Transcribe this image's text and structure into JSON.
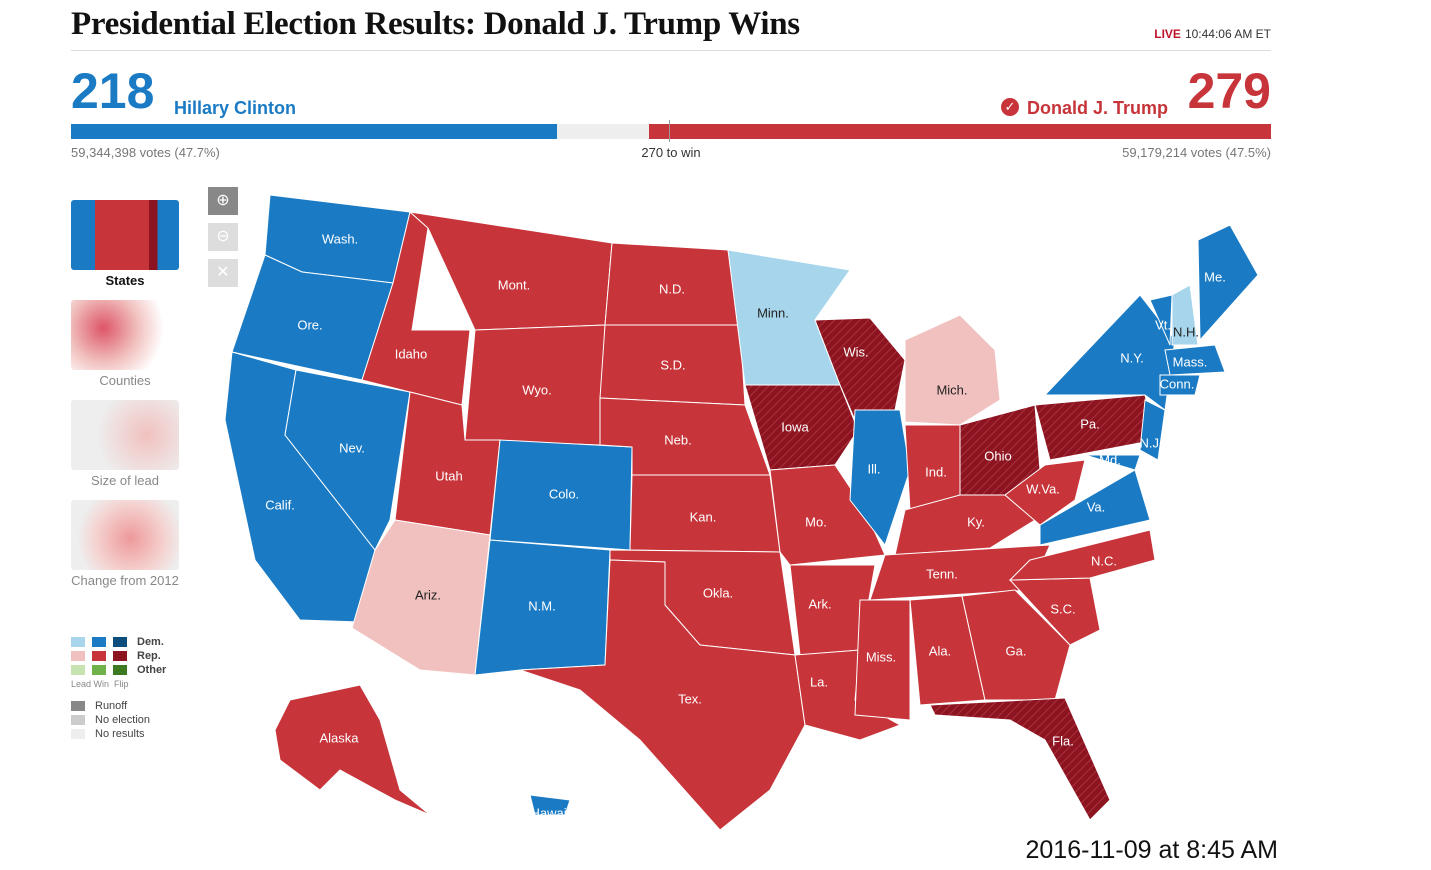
{
  "title": "Presidential Election Results: Donald J. Trump Wins",
  "live": {
    "tag": "LIVE",
    "time": "10:44:06 AM ET"
  },
  "dem": {
    "electoral": "218",
    "name": "Hillary Clinton",
    "votes": "59,344,398 votes (47.7%)",
    "color": "#1a7bc4"
  },
  "rep": {
    "electoral": "279",
    "name": "Donald J. Trump",
    "votes": "59,179,214 votes (47.5%)",
    "color": "#c7343a",
    "check_icon": "checkmark-circle-icon"
  },
  "to_win": "270 to win",
  "views": [
    {
      "label": "States"
    },
    {
      "label": "Counties"
    },
    {
      "label": "Size of lead"
    },
    {
      "label": "Change from 2012"
    }
  ],
  "zoom": {
    "in_icon": "zoom-in-icon",
    "out_icon": "zoom-out-icon",
    "reset_icon": "close-icon"
  },
  "legend": {
    "dem": "Dem.",
    "rep": "Rep.",
    "other": "Other",
    "lead_win_flip": "Lead Win  Flip",
    "runoff": "Runoff",
    "no_election": "No election",
    "no_results": "No results"
  },
  "colors": {
    "dem_win": "#1a7bc4",
    "dem_lead": "#a7d6ec",
    "rep_win": "#c7343a",
    "rep_lead": "#f1c1bf",
    "rep_flip": "#8c1420"
  },
  "states": [
    {
      "label": "Wash.",
      "status": "dem_win"
    },
    {
      "label": "Ore.",
      "status": "dem_win"
    },
    {
      "label": "Calif.",
      "status": "dem_win"
    },
    {
      "label": "Nev.",
      "status": "dem_win"
    },
    {
      "label": "Idaho",
      "status": "rep_win"
    },
    {
      "label": "Mont.",
      "status": "rep_win"
    },
    {
      "label": "Wyo.",
      "status": "rep_win"
    },
    {
      "label": "Utah",
      "status": "rep_win"
    },
    {
      "label": "Colo.",
      "status": "dem_win"
    },
    {
      "label": "Ariz.",
      "status": "rep_lead"
    },
    {
      "label": "N.M.",
      "status": "dem_win"
    },
    {
      "label": "N.D.",
      "status": "rep_win"
    },
    {
      "label": "S.D.",
      "status": "rep_win"
    },
    {
      "label": "Neb.",
      "status": "rep_win"
    },
    {
      "label": "Kan.",
      "status": "rep_win"
    },
    {
      "label": "Okla.",
      "status": "rep_win"
    },
    {
      "label": "Tex.",
      "status": "rep_win"
    },
    {
      "label": "Minn.",
      "status": "dem_lead"
    },
    {
      "label": "Iowa",
      "status": "rep_flip"
    },
    {
      "label": "Mo.",
      "status": "rep_win"
    },
    {
      "label": "Ark.",
      "status": "rep_win"
    },
    {
      "label": "La.",
      "status": "rep_win"
    },
    {
      "label": "Wis.",
      "status": "rep_flip"
    },
    {
      "label": "Ill.",
      "status": "dem_win"
    },
    {
      "label": "Mich.",
      "status": "rep_lead"
    },
    {
      "label": "Ind.",
      "status": "rep_win"
    },
    {
      "label": "Ohio",
      "status": "rep_flip"
    },
    {
      "label": "Ky.",
      "status": "rep_win"
    },
    {
      "label": "Tenn.",
      "status": "rep_win"
    },
    {
      "label": "Miss.",
      "status": "rep_win"
    },
    {
      "label": "Ala.",
      "status": "rep_win"
    },
    {
      "label": "Ga.",
      "status": "rep_win"
    },
    {
      "label": "Fla.",
      "status": "rep_flip"
    },
    {
      "label": "S.C.",
      "status": "rep_win"
    },
    {
      "label": "N.C.",
      "status": "rep_win"
    },
    {
      "label": "Va.",
      "status": "dem_win"
    },
    {
      "label": "W.Va.",
      "status": "rep_win"
    },
    {
      "label": "Pa.",
      "status": "rep_flip"
    },
    {
      "label": "N.Y.",
      "status": "dem_win"
    },
    {
      "label": "N.J.",
      "status": "dem_win"
    },
    {
      "label": "Md.",
      "status": "dem_win"
    },
    {
      "label": "Vt.",
      "status": "dem_win"
    },
    {
      "label": "N.H.",
      "status": "dem_lead"
    },
    {
      "label": "Mass.",
      "status": "dem_win"
    },
    {
      "label": "Conn.",
      "status": "dem_win"
    },
    {
      "label": "Me.",
      "status": "dem_win"
    },
    {
      "label": "Alaska",
      "status": "rep_win"
    },
    {
      "label": "Hawaii",
      "status": "dem_win"
    }
  ],
  "timestamp": "2016-11-09 at 8:45 AM"
}
